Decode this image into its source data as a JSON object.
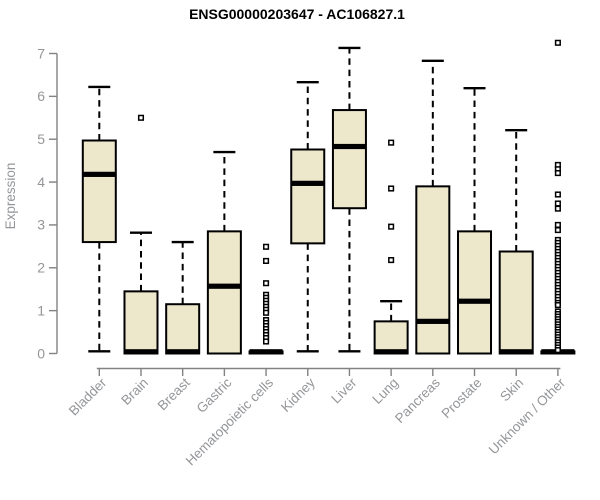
{
  "page": {
    "title": "ENSG00000203647 - AC106827.1"
  },
  "chart_data": {
    "type": "boxplot",
    "title": "ENSG00000203647 - AC106827.1",
    "xlabel": "",
    "ylabel": "Expression",
    "ylim": [
      0,
      7
    ],
    "yticks": [
      0,
      1,
      2,
      3,
      4,
      5,
      6,
      7
    ],
    "grid": false,
    "legend": "none",
    "categories": [
      "Bladder",
      "Brain",
      "Breast",
      "Gastric",
      "Hematopoietic cells",
      "Kidney",
      "Liver",
      "Lung",
      "Pancreas",
      "Prostate",
      "Skin",
      "Unknown / Other"
    ],
    "series": [
      {
        "category": "Bladder",
        "whisker_low": 0.05,
        "q1": 2.6,
        "median": 4.18,
        "q3": 4.97,
        "whisker_high": 6.22,
        "outliers": []
      },
      {
        "category": "Brain",
        "whisker_low": 0,
        "q1": 0,
        "median": 0.04,
        "q3": 1.45,
        "whisker_high": 2.82,
        "outliers": [
          5.5
        ]
      },
      {
        "category": "Breast",
        "whisker_low": 0,
        "q1": 0,
        "median": 0.04,
        "q3": 1.15,
        "whisker_high": 2.6,
        "outliers": []
      },
      {
        "category": "Gastric",
        "whisker_low": 0,
        "q1": 0,
        "median": 1.57,
        "q3": 2.85,
        "whisker_high": 4.7,
        "outliers": []
      },
      {
        "category": "Hematopoietic cells",
        "whisker_low": 0,
        "q1": 0,
        "median": 0.04,
        "q3": 0.05,
        "whisker_high": 0.05,
        "outliers": [
          2.49,
          2.16,
          1.64,
          1.37,
          1.3,
          1.23,
          1.16,
          1.09,
          1.02,
          0.95,
          0.78,
          0.71,
          0.64,
          0.57,
          0.5,
          0.43,
          0.36,
          0.28
        ]
      },
      {
        "category": "Kidney",
        "whisker_low": 0.05,
        "q1": 2.57,
        "median": 3.97,
        "q3": 4.76,
        "whisker_high": 6.33,
        "outliers": []
      },
      {
        "category": "Liver",
        "whisker_low": 0.05,
        "q1": 3.39,
        "median": 4.83,
        "q3": 5.68,
        "whisker_high": 7.13,
        "outliers": []
      },
      {
        "category": "Lung",
        "whisker_low": 0,
        "q1": 0,
        "median": 0.04,
        "q3": 0.75,
        "whisker_high": 1.22,
        "outliers": [
          4.92,
          3.85,
          2.96,
          2.18
        ]
      },
      {
        "category": "Pancreas",
        "whisker_low": 0,
        "q1": 0,
        "median": 0.75,
        "q3": 3.9,
        "whisker_high": 6.83,
        "outliers": []
      },
      {
        "category": "Prostate",
        "whisker_low": 0,
        "q1": 0,
        "median": 1.22,
        "q3": 2.85,
        "whisker_high": 6.19,
        "outliers": []
      },
      {
        "category": "Skin",
        "whisker_low": 0,
        "q1": 0,
        "median": 0.04,
        "q3": 2.38,
        "whisker_high": 5.21,
        "outliers": []
      },
      {
        "category": "Unknown / Other",
        "whisker_low": 0,
        "q1": 0,
        "median": 0.04,
        "q3": 0.05,
        "whisker_high": 0.05,
        "outliers": [
          7.25,
          4.4,
          4.3,
          4.21,
          3.71,
          3.5,
          3.38,
          3.0,
          2.88,
          2.65,
          2.58,
          2.51,
          2.44,
          2.37,
          2.3,
          2.23,
          2.16,
          2.09,
          2.02,
          1.95,
          1.88,
          1.81,
          1.74,
          1.67,
          1.6,
          1.53,
          1.46,
          1.39,
          1.32,
          1.25,
          1.18,
          1.13,
          0.98,
          0.92,
          0.86,
          0.8,
          0.74,
          0.68,
          0.62,
          0.56,
          0.5,
          0.44,
          0.38,
          0.32,
          0.26,
          0.2,
          0.14,
          0.08
        ]
      }
    ],
    "colors": {
      "box_fill": "#EDE7CB",
      "box_stroke": "#000000",
      "median": "#000000",
      "whisker": "#000000",
      "outlier_fill": "#FFFFFF",
      "axis": "#828282",
      "tick_label": "#949699",
      "title": "#000000",
      "background": "#FFFFFF"
    }
  }
}
